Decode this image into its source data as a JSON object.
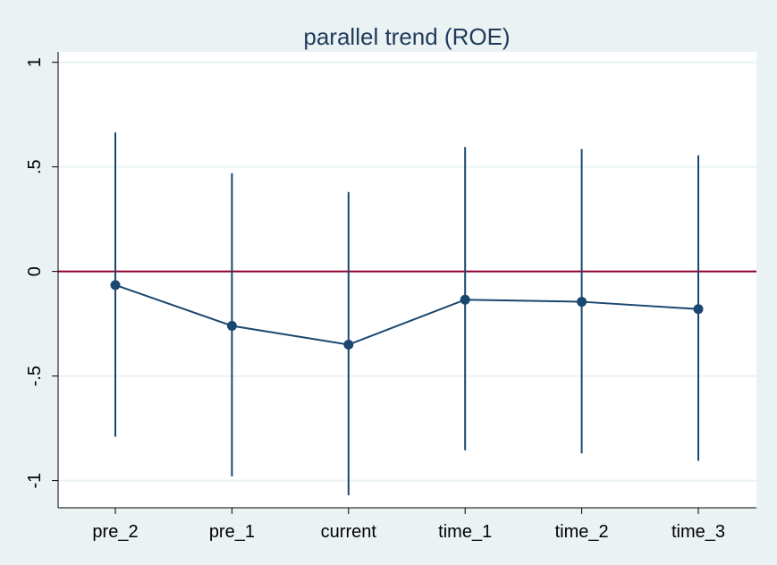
{
  "chart_data": {
    "type": "scatter",
    "title": "parallel trend (ROE)",
    "xlabel": "",
    "ylabel": "",
    "categories": [
      "pre_2",
      "pre_1",
      "current",
      "time_1",
      "time_2",
      "time_3"
    ],
    "series": [
      {
        "values": [
          -0.065,
          -0.26,
          -0.35,
          -0.135,
          -0.145,
          -0.18
        ],
        "ci_low": [
          -0.79,
          -0.98,
          -1.07,
          -0.855,
          -0.87,
          -0.905
        ],
        "ci_high": [
          0.665,
          0.47,
          0.38,
          0.595,
          0.585,
          0.555
        ]
      }
    ],
    "ylim": [
      -1.13,
      1.05
    ],
    "yticks": [
      -1,
      -0.5,
      0,
      0.5,
      1
    ],
    "ytick_labels": [
      "-1",
      "-.5",
      "0",
      ".5",
      "1"
    ],
    "reference_line": {
      "y": 0,
      "color": "#90002d"
    },
    "grid": true,
    "colors": {
      "series": "#1a476f",
      "background": "#eaf2f3",
      "plot_bg": "#ffffff",
      "grid": "#eaf2f3",
      "title": "#1f3a5a"
    }
  }
}
